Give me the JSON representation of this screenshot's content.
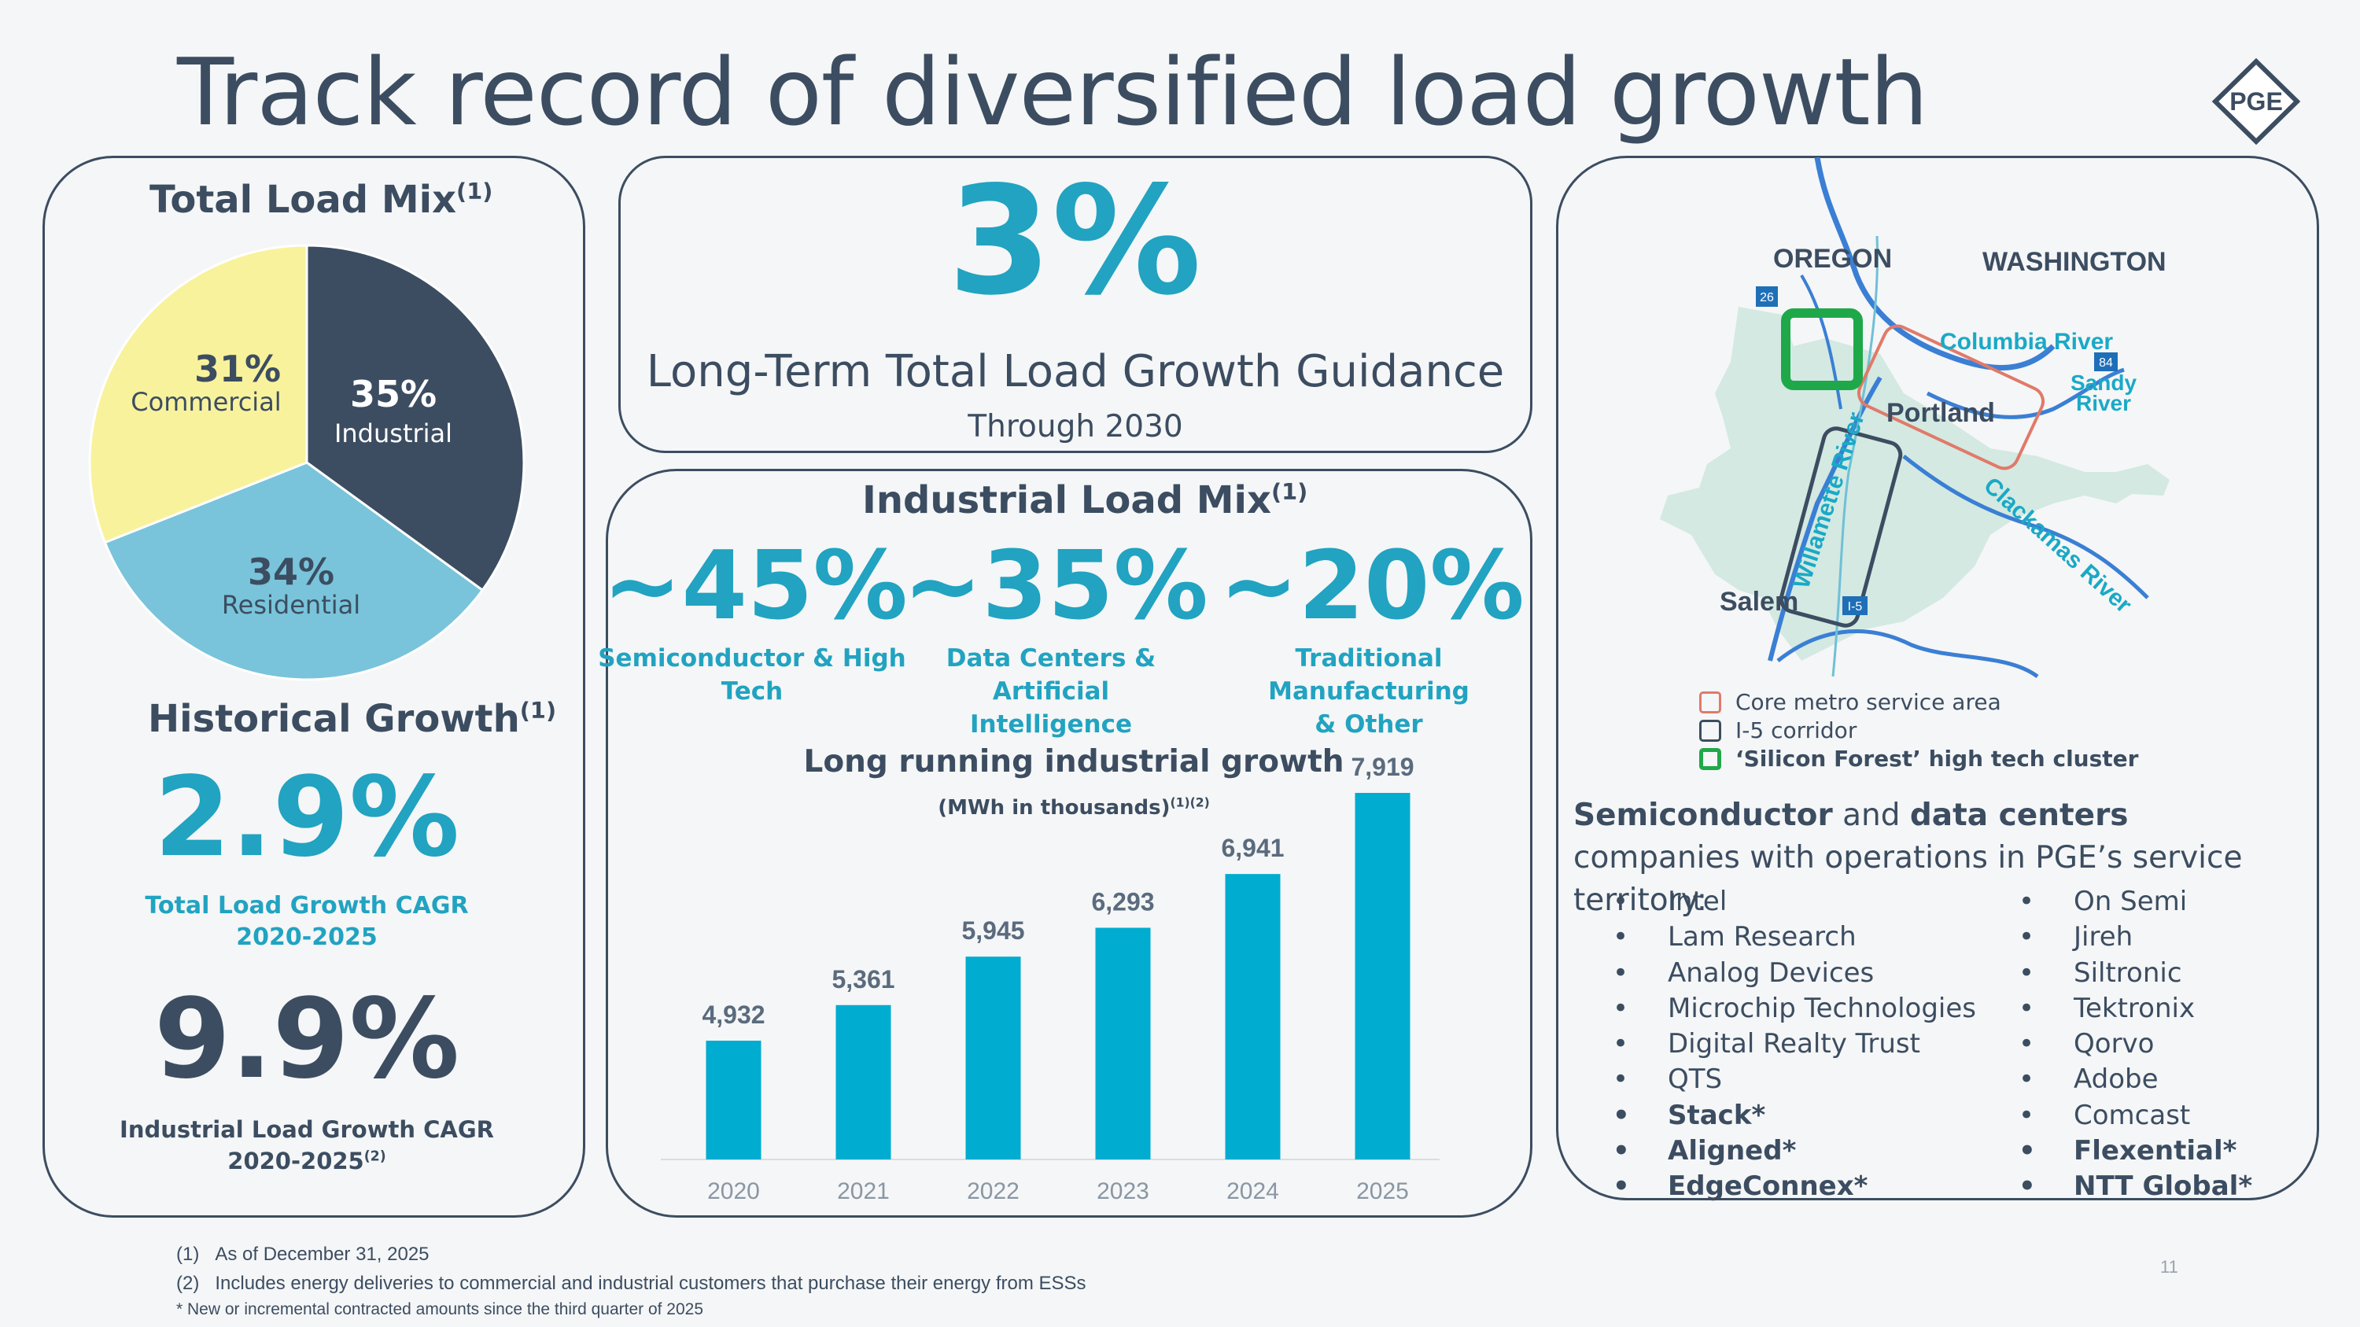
{
  "title": "Track record of diversified load growth",
  "logo_text": "PGE",
  "total_load_mix": {
    "heading": "Total Load Mix",
    "footnote_ref": "(1)",
    "slices": [
      {
        "label": "Industrial",
        "pct": "35%",
        "value": 35,
        "color": "#3c4d61"
      },
      {
        "label": "Residential",
        "pct": "34%",
        "value": 34,
        "color": "#79c4da"
      },
      {
        "label": "Commercial",
        "pct": "31%",
        "value": 31,
        "color": "#f8f29c"
      }
    ]
  },
  "historical_growth": {
    "heading": "Historical Growth",
    "footnote_ref": "(1)",
    "total_value": "2.9%",
    "total_caption_1": "Total Load Growth CAGR",
    "total_caption_2": "2020-2025",
    "industrial_value": "9.9%",
    "industrial_caption_1": "Industrial Load Growth CAGR",
    "industrial_caption_2": "2020-2025",
    "industrial_footnote_ref": "(2)"
  },
  "guidance": {
    "value": "3%",
    "label": "Long-Term Total Load Growth Guidance",
    "sub": "Through 2030"
  },
  "industrial_load_mix": {
    "heading": "Industrial Load Mix",
    "footnote_ref": "(1)",
    "items": [
      {
        "pct": "~45%",
        "label_1": "Semiconductor & High",
        "label_2": "Tech"
      },
      {
        "pct": "~35%",
        "label_1": "Data Centers & Artificial",
        "label_2": "Intelligence"
      },
      {
        "pct": "~20%",
        "label_1": "Traditional Manufacturing",
        "label_2": "& Other"
      }
    ]
  },
  "chart_data": {
    "type": "bar",
    "title": "Long running industrial growth",
    "subtitle": "(MWh in thousands)",
    "subtitle_refs": "(1)(2)",
    "categories": [
      "2020",
      "2021",
      "2022",
      "2023",
      "2024",
      "2025"
    ],
    "values": [
      4932,
      5361,
      5945,
      6293,
      6941,
      7919
    ],
    "value_labels": [
      "4,932",
      "5,361",
      "5,945",
      "6,293",
      "6,941",
      "7,919"
    ],
    "ylim": [
      3500,
      7919
    ],
    "bar_color": "#00acd0",
    "grid": false
  },
  "map": {
    "labels": {
      "oregon": "OREGON",
      "washington": "WASHINGTON",
      "columbia": "Columbia River",
      "sandy_1": "Sandy",
      "sandy_2": "River",
      "portland": "Portland",
      "willamette": "Willamette River",
      "clackamas": "Clackamas River",
      "salem": "Salem",
      "hwy26": "26",
      "hwy84": "84",
      "i5": "I-5"
    },
    "legend": [
      {
        "label": "Core metro service area",
        "color": "#e07a6a",
        "bold": false
      },
      {
        "label": "I-5 corridor",
        "color": "#3c4d61",
        "bold": false
      },
      {
        "label": "‘Silicon Forest’ high tech cluster",
        "color": "#1fa84a",
        "bold": true
      }
    ]
  },
  "companies": {
    "intro_bold_1": "Semiconductor",
    "intro_mid": " and ",
    "intro_bold_2": "data centers",
    "intro_rest": " companies with operations in PGE’s service territory:",
    "col1": [
      {
        "name": "Intel",
        "bold": false
      },
      {
        "name": "Lam Research",
        "bold": false
      },
      {
        "name": "Analog Devices",
        "bold": false
      },
      {
        "name": "Microchip Technologies",
        "bold": false
      },
      {
        "name": "Digital Realty Trust",
        "bold": false
      },
      {
        "name": "QTS",
        "bold": false
      },
      {
        "name": "Stack*",
        "bold": true
      },
      {
        "name": "Aligned*",
        "bold": true
      },
      {
        "name": "EdgeConnex*",
        "bold": true
      }
    ],
    "col2": [
      {
        "name": "On Semi",
        "bold": false
      },
      {
        "name": "Jireh",
        "bold": false
      },
      {
        "name": "Siltronic",
        "bold": false
      },
      {
        "name": "Tektronix",
        "bold": false
      },
      {
        "name": "Qorvo",
        "bold": false
      },
      {
        "name": "Adobe",
        "bold": false
      },
      {
        "name": "Comcast",
        "bold": false
      },
      {
        "name": "Flexential*",
        "bold": true
      },
      {
        "name": "NTT Global*",
        "bold": true
      }
    ]
  },
  "footnotes": {
    "f1_num": "(1)",
    "f1_text": "As of December 31, 2025",
    "f2_num": "(2)",
    "f2_text": "Includes energy deliveries to commercial and industrial customers that purchase their energy from ESSs",
    "f3": "* New or incremental contracted amounts since the third quarter of 2025"
  },
  "page_number": "11"
}
